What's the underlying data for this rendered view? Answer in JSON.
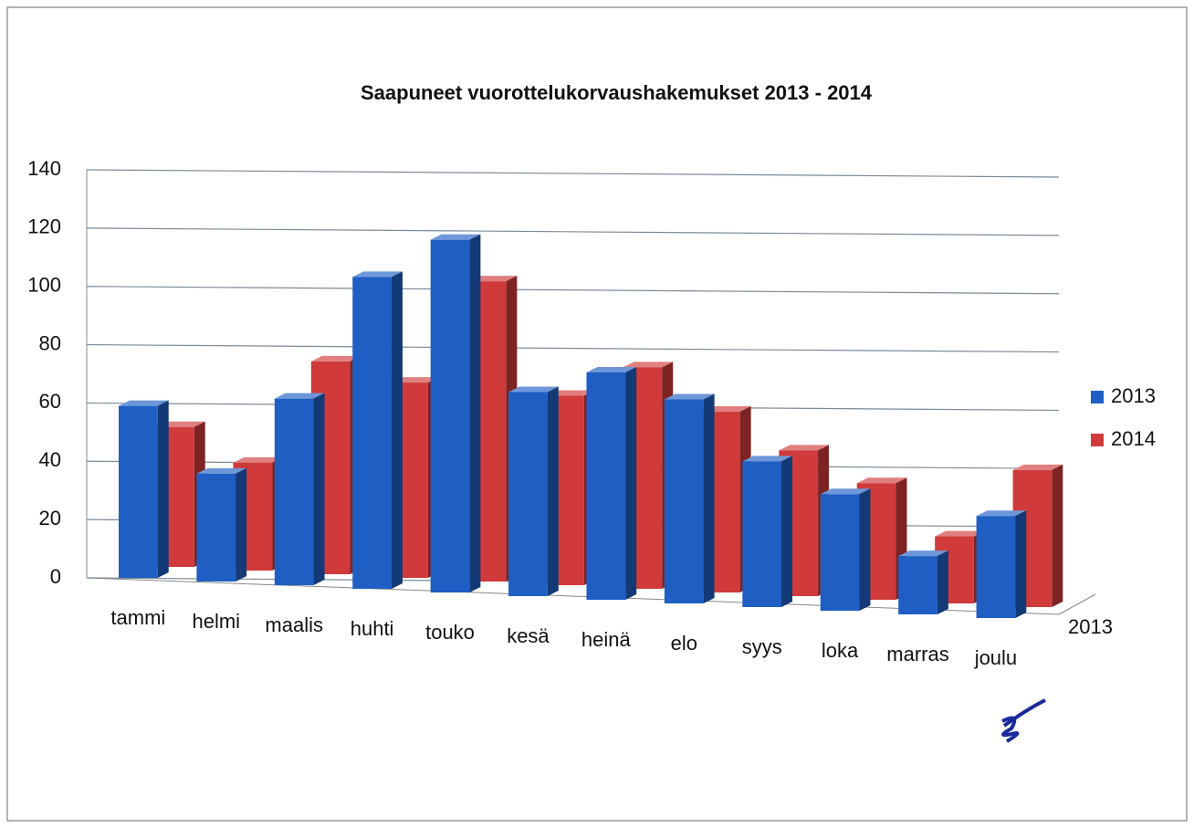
{
  "chart_data": {
    "type": "bar3d",
    "title": "Saapuneet vuorottelukorvaushakemukset 2013 - 2014",
    "categories": [
      "tammi",
      "helmi",
      "maalis",
      "huhti",
      "touko",
      "kesä",
      "heinä",
      "elo",
      "syys",
      "loka",
      "marras",
      "joulu"
    ],
    "series": [
      {
        "name": "2013",
        "color": "#1f5fc4",
        "values": [
          59,
          37,
          64,
          107,
          121,
          70,
          78,
          70,
          50,
          40,
          20,
          35
        ]
      },
      {
        "name": "2014",
        "color": "#d03a3a",
        "values": [
          48,
          37,
          73,
          67,
          103,
          65,
          76,
          62,
          50,
          40,
          23,
          47
        ]
      }
    ],
    "depth_label": "2013",
    "ylim": [
      0,
      140
    ],
    "yticks": [
      0,
      20,
      40,
      60,
      80,
      100,
      120,
      140
    ],
    "grid": true,
    "legend": "right"
  }
}
